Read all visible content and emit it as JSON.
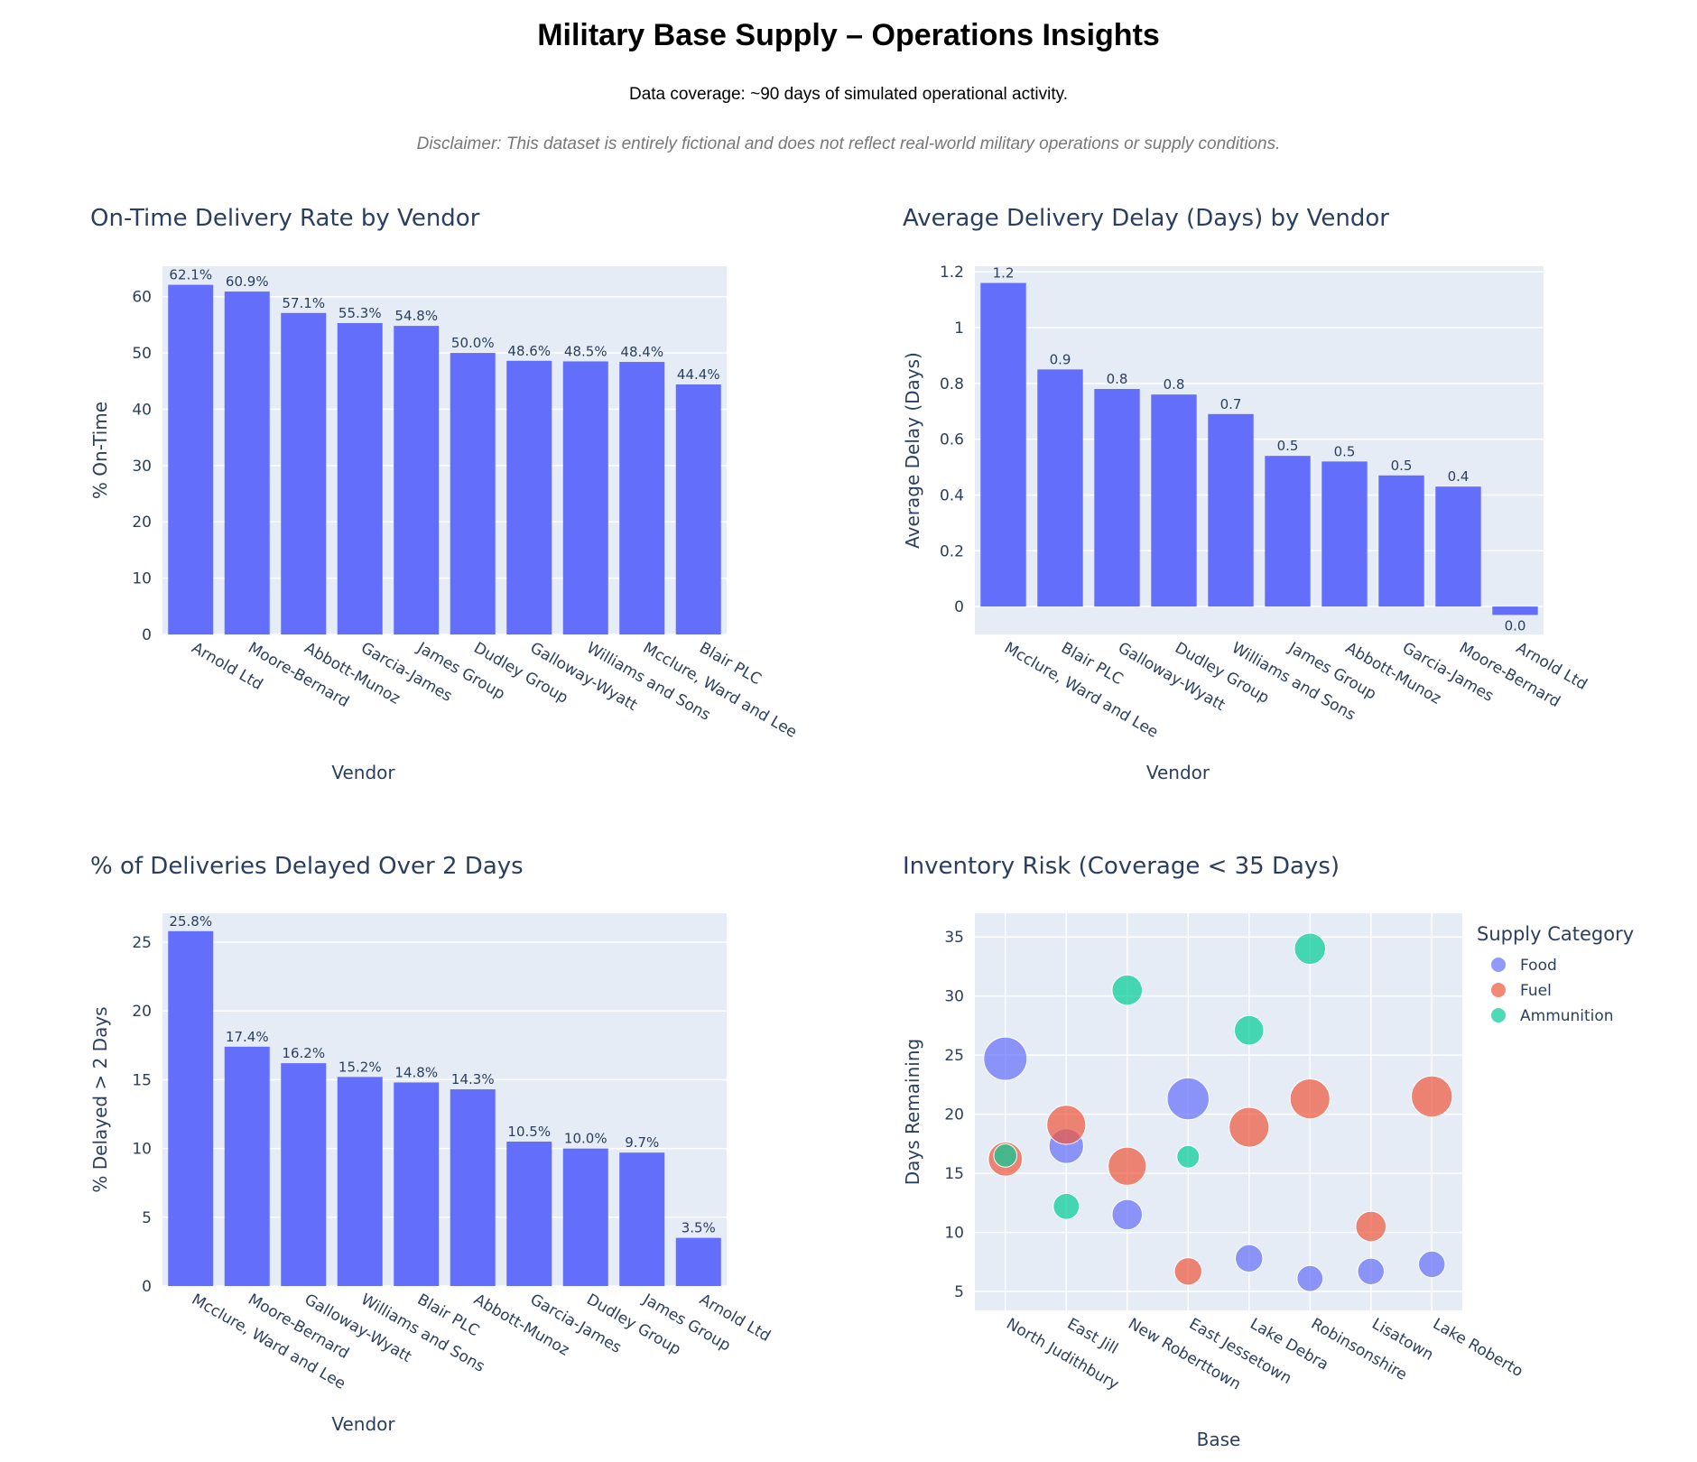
{
  "header": {
    "title": "Military Base Supply – Operations Insights",
    "subtitle": "Data coverage: ~90 days of simulated operational activity.",
    "disclaimer": "Disclaimer: This dataset is entirely fictional and does not reflect real-world military operations or supply conditions."
  },
  "colors": {
    "bar": "#636efa",
    "plot_bg": "#e5ecf6",
    "food": "#636efa",
    "fuel": "#ef553b",
    "ammunition": "#00cc96"
  },
  "chart_data": [
    {
      "type": "bar",
      "title": "On-Time Delivery Rate by Vendor",
      "xlabel": "Vendor",
      "ylabel": "% On-Time",
      "categories": [
        "Arnold Ltd",
        "Moore-Bernard",
        "Abbott-Munoz",
        "Garcia-James",
        "James Group",
        "Dudley Group",
        "Galloway-Wyatt",
        "Williams and Sons",
        "Mcclure, Ward and Lee",
        "Blair PLC"
      ],
      "values": [
        62.1,
        60.9,
        57.1,
        55.3,
        54.8,
        50.0,
        48.6,
        48.5,
        48.4,
        44.4
      ],
      "labels": [
        "62.1%",
        "60.9%",
        "57.1%",
        "55.3%",
        "54.8%",
        "50.0%",
        "48.6%",
        "48.5%",
        "48.4%",
        "44.4%"
      ],
      "ylim": [
        0,
        65.4
      ],
      "yticks": [
        0,
        10,
        20,
        30,
        40,
        50,
        60
      ]
    },
    {
      "type": "bar",
      "title": "Average Delivery Delay (Days) by Vendor",
      "xlabel": "Vendor",
      "ylabel": "Average Delay (Days)",
      "categories": [
        "Mcclure, Ward and Lee",
        "Blair PLC",
        "Galloway-Wyatt",
        "Dudley Group",
        "Williams and Sons",
        "James Group",
        "Abbott-Munoz",
        "Garcia-James",
        "Moore-Bernard",
        "Arnold Ltd"
      ],
      "values": [
        1.16,
        0.85,
        0.78,
        0.76,
        0.69,
        0.54,
        0.52,
        0.47,
        0.43,
        -0.03
      ],
      "labels": [
        "1.2",
        "0.9",
        "0.8",
        "0.8",
        "0.7",
        "0.5",
        "0.5",
        "0.5",
        "0.4",
        "0.0"
      ],
      "ylim": [
        -0.1,
        1.22
      ],
      "yticks": [
        0,
        0.2,
        0.4,
        0.6,
        0.8,
        1,
        1.2
      ],
      "ytick_labels": [
        "0",
        "0.2",
        "0.4",
        "0.6",
        "0.8",
        "1",
        "1.2"
      ]
    },
    {
      "type": "bar",
      "title": "% of Deliveries Delayed Over 2 Days",
      "xlabel": "Vendor",
      "ylabel": "% Delayed > 2 Days",
      "categories": [
        "Mcclure, Ward and Lee",
        "Moore-Bernard",
        "Galloway-Wyatt",
        "Williams and Sons",
        "Blair PLC",
        "Abbott-Munoz",
        "Garcia-James",
        "Dudley Group",
        "James Group",
        "Arnold Ltd"
      ],
      "values": [
        25.8,
        17.4,
        16.2,
        15.2,
        14.8,
        14.3,
        10.5,
        10.0,
        9.7,
        3.5
      ],
      "labels": [
        "25.8%",
        "17.4%",
        "16.2%",
        "15.2%",
        "14.8%",
        "14.3%",
        "10.5%",
        "10.0%",
        "9.7%",
        "3.5%"
      ],
      "ylim": [
        0,
        27.1
      ],
      "yticks": [
        0,
        5,
        10,
        15,
        20,
        25
      ]
    },
    {
      "type": "scatter",
      "title": "Inventory Risk (Coverage < 35 Days)",
      "xlabel": "Base",
      "ylabel": "Days Remaining",
      "categories": [
        "North Judithbury",
        "East Jill",
        "New Roberttown",
        "East Jessetown",
        "Lake Debra",
        "Robinsonshire",
        "Lisatown",
        "Lake Roberto"
      ],
      "ylim": [
        3.4,
        37
      ],
      "yticks": [
        5,
        10,
        15,
        20,
        25,
        30,
        35
      ],
      "legend_title": "Supply Category",
      "legend_position": "top-right",
      "series": [
        {
          "name": "Food",
          "color": "#636efa",
          "points": [
            {
              "x": "North Judithbury",
              "y": 24.7,
              "size": 1.0
            },
            {
              "x": "East Jill",
              "y": 17.3,
              "size": 0.7
            },
            {
              "x": "New Roberttown",
              "y": 11.5,
              "size": 0.55
            },
            {
              "x": "East Jessetown",
              "y": 21.3,
              "size": 0.95
            },
            {
              "x": "Lake Debra",
              "y": 7.8,
              "size": 0.45
            },
            {
              "x": "Robinsonshire",
              "y": 6.1,
              "size": 0.4
            },
            {
              "x": "Lisatown",
              "y": 6.7,
              "size": 0.42
            },
            {
              "x": "Lake Roberto",
              "y": 7.3,
              "size": 0.42
            }
          ]
        },
        {
          "name": "Fuel",
          "color": "#ef553b",
          "points": [
            {
              "x": "North Judithbury",
              "y": 16.2,
              "size": 0.68
            },
            {
              "x": "East Jill",
              "y": 19.1,
              "size": 0.85
            },
            {
              "x": "New Roberttown",
              "y": 15.6,
              "size": 0.82
            },
            {
              "x": "East Jessetown",
              "y": 6.7,
              "size": 0.45
            },
            {
              "x": "Lake Debra",
              "y": 18.9,
              "size": 0.88
            },
            {
              "x": "Robinsonshire",
              "y": 21.3,
              "size": 0.88
            },
            {
              "x": "Lisatown",
              "y": 10.5,
              "size": 0.55
            },
            {
              "x": "Lake Roberto",
              "y": 21.5,
              "size": 0.92
            }
          ]
        },
        {
          "name": "Ammunition",
          "color": "#00cc96",
          "points": [
            {
              "x": "North Judithbury",
              "y": 16.5,
              "size": 0.3
            },
            {
              "x": "East Jill",
              "y": 12.2,
              "size": 0.4
            },
            {
              "x": "New Roberttown",
              "y": 30.5,
              "size": 0.55
            },
            {
              "x": "East Jessetown",
              "y": 16.4,
              "size": 0.28
            },
            {
              "x": "Lake Debra",
              "y": 27.1,
              "size": 0.52
            },
            {
              "x": "Robinsonshire",
              "y": 34.0,
              "size": 0.58
            }
          ]
        }
      ]
    }
  ]
}
